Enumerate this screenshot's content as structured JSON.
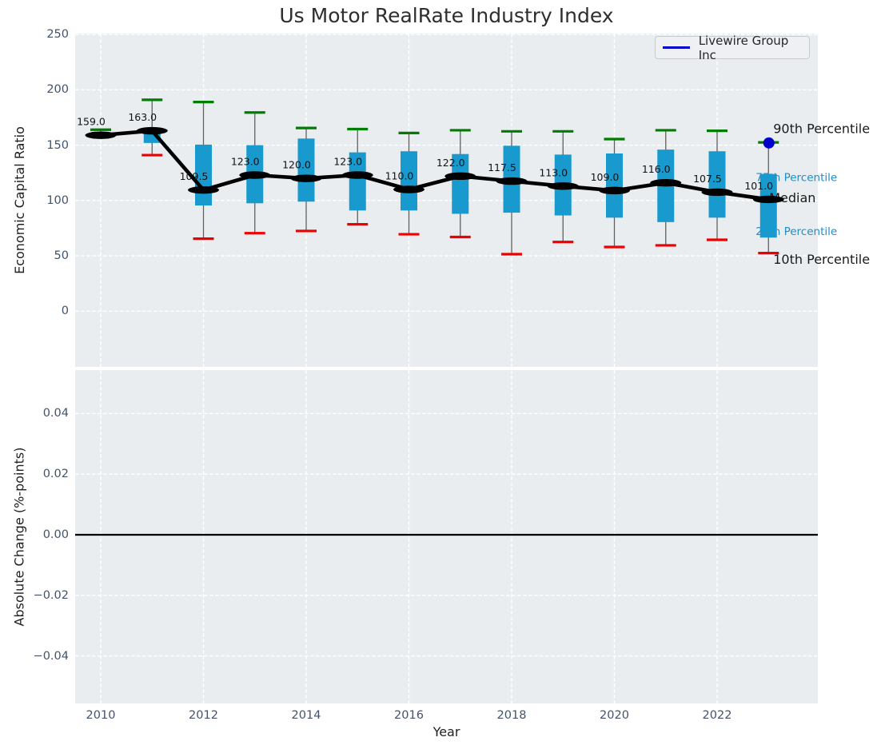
{
  "title": "Us Motor RealRate Industry Index",
  "legend": {
    "label": "Livewire Group Inc",
    "line_color": "#0000cd",
    "position": "upper right"
  },
  "colors": {
    "plot_background": "#e9edf0",
    "grid": "#ffffff",
    "box_fill": "#199ace",
    "whisker_line": "#606060",
    "cap_high": "#007d00",
    "cap_low": "#ef0000",
    "median": "#000000",
    "company_marker": "#0000cd",
    "percentile_label_blue": "#1b8fc9",
    "annotation_dark": "#1a1a1a",
    "tick_label": "#42536b"
  },
  "chart_data": [
    {
      "type": "boxplot",
      "subplot": "top",
      "ylabel": "Economic Capital Ratio",
      "ytick_labels": [
        "250",
        "200",
        "150",
        "100",
        "50",
        "0"
      ],
      "ytick_values": [
        250,
        200,
        150,
        100,
        50,
        0
      ],
      "ylim": [
        -50,
        251
      ],
      "grid": true,
      "categories": [
        2010,
        2011,
        2012,
        2013,
        2014,
        2015,
        2016,
        2017,
        2018,
        2019,
        2020,
        2021,
        2022,
        2023
      ],
      "series": [
        {
          "name": "p10",
          "values": [
            158,
            141,
            65.5,
            70.5,
            72.5,
            78.5,
            69.5,
            67,
            51.5,
            62.5,
            58,
            59.5,
            64.5,
            52.5
          ]
        },
        {
          "name": "p25",
          "values": [
            157.5,
            152,
            95.5,
            97.5,
            99,
            91,
            91,
            88,
            89,
            86.5,
            84.5,
            80.5,
            84.5,
            66.5
          ]
        },
        {
          "name": "median",
          "values": [
            159.0,
            163.0,
            109.5,
            123.0,
            120.0,
            123.0,
            110.0,
            122.0,
            117.5,
            113.0,
            109.0,
            116.0,
            107.5,
            101.0
          ]
        },
        {
          "name": "p75",
          "values": [
            160.5,
            165,
            150.5,
            150,
            156,
            143.5,
            144.5,
            142,
            149.5,
            141.5,
            142.5,
            146,
            144.5,
            124
          ]
        },
        {
          "name": "p90",
          "values": [
            164,
            191,
            189,
            179.5,
            165.5,
            164.5,
            161,
            163.5,
            162.5,
            162.5,
            155.5,
            163.5,
            163,
            152.5
          ]
        }
      ],
      "median_labels": [
        "159.0",
        "163.0",
        "109.5",
        "123.0",
        "120.0",
        "123.0",
        "110.0",
        "122.0",
        "117.5",
        "113.0",
        "109.0",
        "116.0",
        "107.5",
        "101.0"
      ],
      "company_point": {
        "name": "Livewire Group Inc",
        "year": 2023,
        "value": 152
      },
      "annotations": [
        {
          "text": "90th Percentile",
          "style": "dark"
        },
        {
          "text": "75th Percentile",
          "style": "blue"
        },
        {
          "text": "Median",
          "style": "dark"
        },
        {
          "text": "25th Percentile",
          "style": "blue"
        },
        {
          "text": "10th Percentile",
          "style": "dark"
        }
      ]
    },
    {
      "type": "empty",
      "subplot": "bottom",
      "ylabel": "Absolute Change (%-points)",
      "xlabel": "Year",
      "ytick_labels": [
        "0.04",
        "0.02",
        "0.00",
        "−0.02",
        "−0.04"
      ],
      "ytick_values": [
        0.04,
        0.02,
        0,
        -0.02,
        -0.04
      ],
      "ylim": [
        -0.055,
        0.055
      ],
      "xtick_labels": [
        "2010",
        "2012",
        "2014",
        "2016",
        "2018",
        "2020",
        "2022"
      ],
      "xtick_values": [
        2010,
        2012,
        2014,
        2016,
        2018,
        2020,
        2022
      ],
      "zero_line": 0.0,
      "grid": true
    }
  ]
}
